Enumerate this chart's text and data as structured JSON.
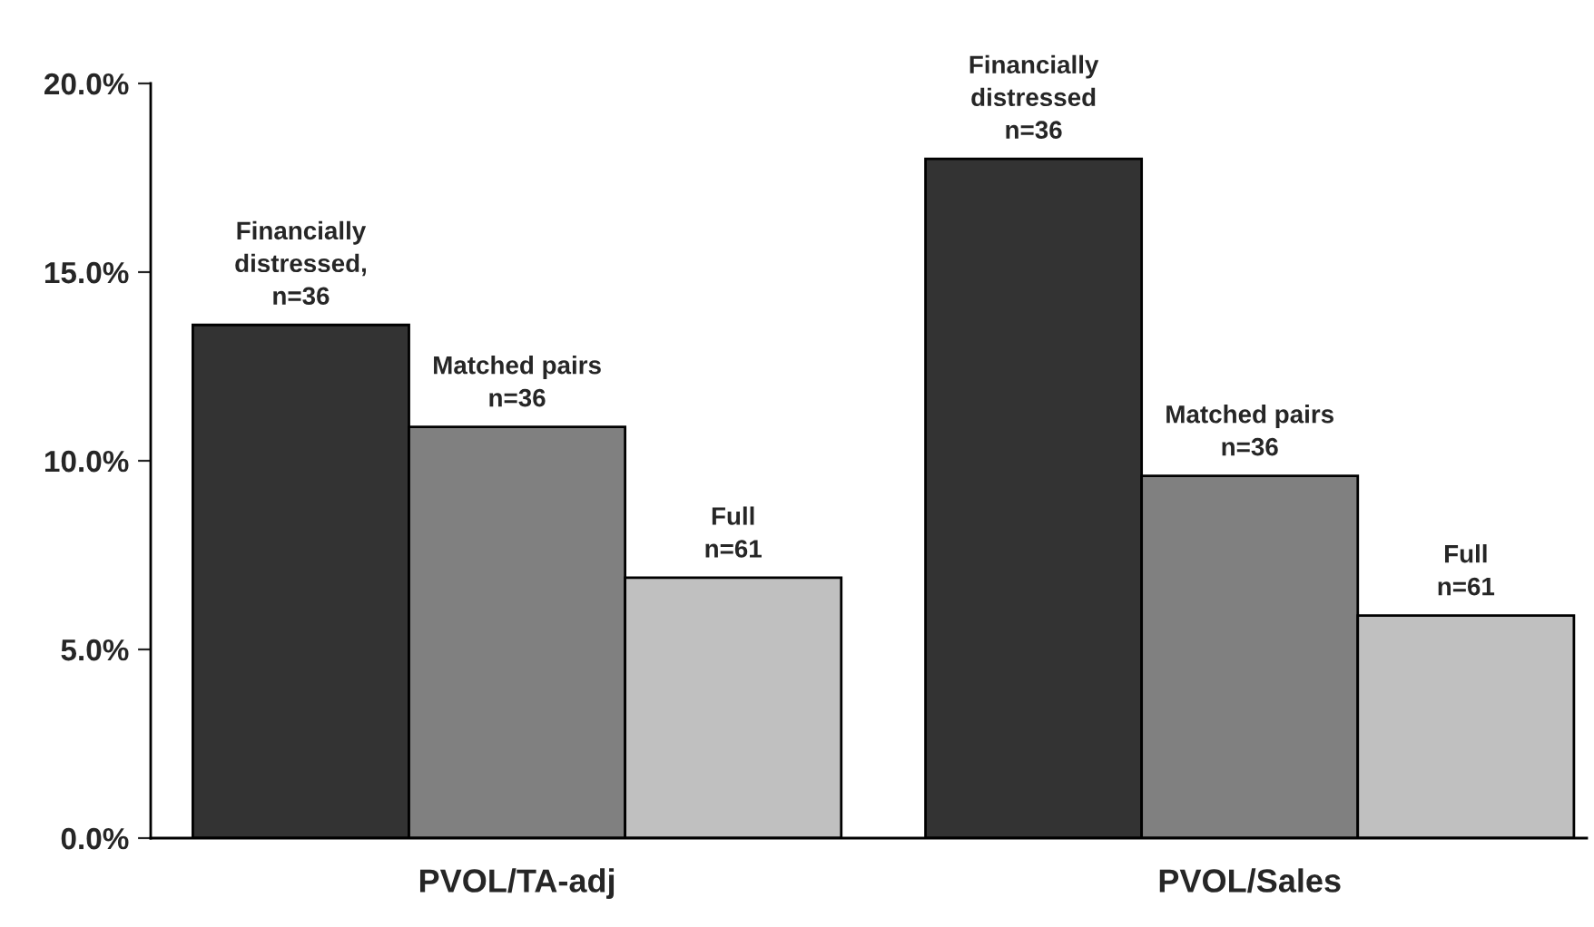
{
  "chart_data": {
    "type": "bar",
    "categories": [
      "PVOL/TA-adj",
      "PVOL/Sales"
    ],
    "series": [
      {
        "color": "#333333",
        "values": [
          13.6,
          18.0
        ]
      },
      {
        "color": "#808080",
        "values": [
          10.9,
          9.6
        ]
      },
      {
        "color": "#c0c0c0",
        "values": [
          6.9,
          5.9
        ]
      }
    ],
    "ylim": [
      0,
      20
    ],
    "yticks": [
      {
        "value": 0,
        "label": "0.0%"
      },
      {
        "value": 5,
        "label": "5.0%"
      },
      {
        "value": 10,
        "label": "10.0%"
      },
      {
        "value": 15,
        "label": "15.0%"
      },
      {
        "value": 20,
        "label": "20.0%"
      }
    ],
    "annotations": [
      "Financially\ndistressed,\nn=36",
      "Matched pairs\nn=36",
      "Full\nn=61",
      "Financially\ndistressed\nn=36",
      "Matched pairs\nn=36",
      "Full\nn=61"
    ],
    "grid": false,
    "legend": false
  }
}
